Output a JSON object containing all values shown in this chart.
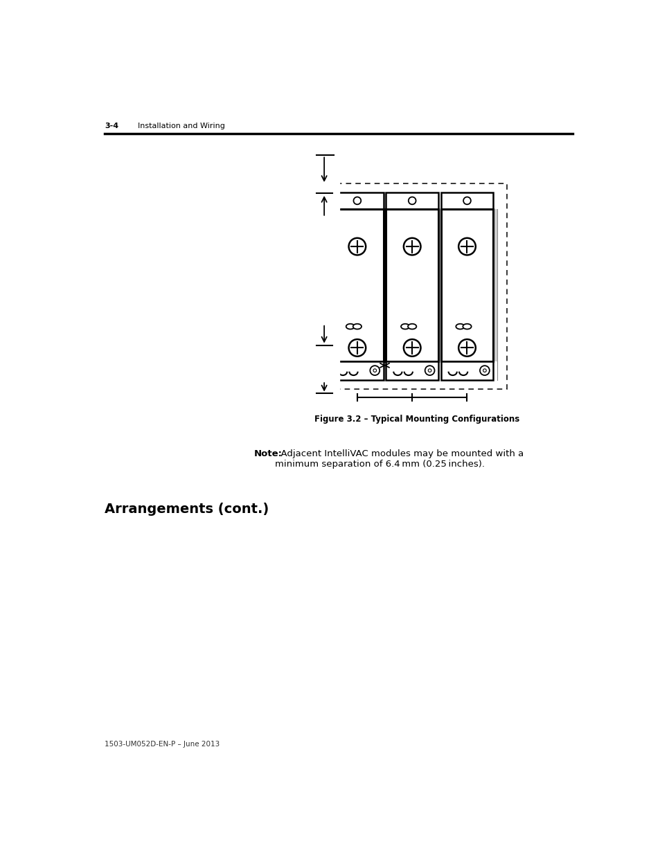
{
  "page_header_number": "3-4",
  "page_header_text": "Installation and Wiring",
  "figure_caption": "Figure 3.2 – Typical Mounting Configurations",
  "note_bold": "Note:",
  "note_text": "  Adjacent IntelliVAC modules may be mounted with a\nminimum separation of 6.4 mm (0.25 inches).",
  "section_heading": "Arrangements (cont.)",
  "footer_text": "1503-UM052D-EN-P – June 2013",
  "bg_color": "#ffffff",
  "text_color": "#000000",
  "diagram_line_color": "#000000"
}
